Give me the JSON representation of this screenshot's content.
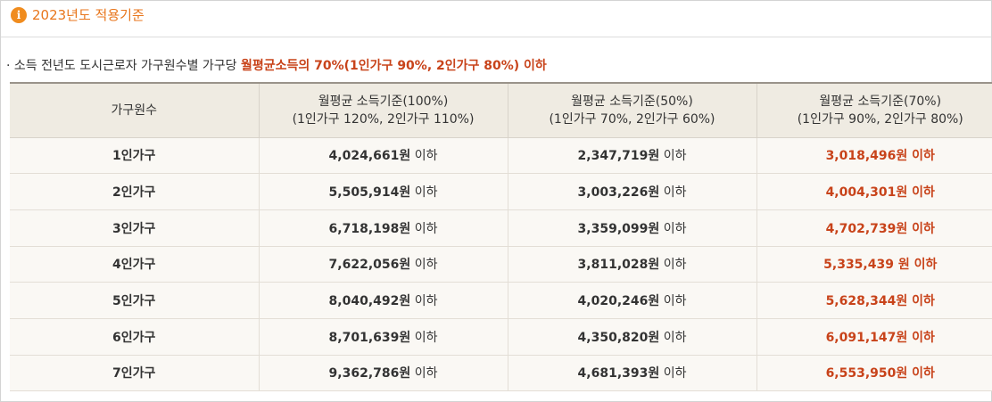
{
  "header": {
    "title": "2023년도 적용기준",
    "icon": "info-icon",
    "accent": "#f08c1e"
  },
  "note": {
    "prefix": "· 소득 전년도 도시근로자 가구원수별 가구당 ",
    "highlight": "월평균소득의 70%(1인가구 90%, 2인가구 80%) 이하",
    "highlight_color": "#c8431a"
  },
  "table": {
    "headers": [
      {
        "line1": "가구원수",
        "line2": ""
      },
      {
        "line1": "월평균 소득기준(100%)",
        "line2": "(1인가구 120%, 2인가구 110%)"
      },
      {
        "line1": "월평균 소득기준(50%)",
        "line2": "(1인가구 70%, 2인가구 60%)"
      },
      {
        "line1": "월평균 소득기준(70%)",
        "line2": "(1인가구 90%, 2인가구 80%)"
      }
    ],
    "rows": [
      {
        "size": "1인가구",
        "c100": "4,024,661원",
        "s100": " 이하",
        "c50": "2,347,719원",
        "s50": " 이하",
        "c70": "3,018,496원",
        "s70": " 이하"
      },
      {
        "size": "2인가구",
        "c100": "5,505,914원",
        "s100": " 이하",
        "c50": "3,003,226원",
        "s50": " 이하",
        "c70": "4,004,301원",
        "s70": " 이하"
      },
      {
        "size": "3인가구",
        "c100": "6,718,198원",
        "s100": " 이하",
        "c50": "3,359,099원",
        "s50": " 이하",
        "c70": "4,702,739원",
        "s70": " 이하"
      },
      {
        "size": "4인가구",
        "c100": "7,622,056원",
        "s100": " 이하",
        "c50": "3,811,028원",
        "s50": " 이하",
        "c70": "5,335,439",
        "s70": " 원 이하"
      },
      {
        "size": "5인가구",
        "c100": "8,040,492원",
        "s100": " 이하",
        "c50": "4,020,246원",
        "s50": " 이하",
        "c70": "5,628,344원",
        "s70": " 이하"
      },
      {
        "size": "6인가구",
        "c100": "8,701,639원",
        "s100": " 이하",
        "c50": "4,350,820원",
        "s50": " 이하",
        "c70": "6,091,147원",
        "s70": " 이하"
      },
      {
        "size": "7인가구",
        "c100": "9,362,786원",
        "s100": " 이하",
        "c50": "4,681,393원",
        "s50": " 이하",
        "c70": "6,553,950원",
        "s70": " 이하"
      }
    ]
  }
}
